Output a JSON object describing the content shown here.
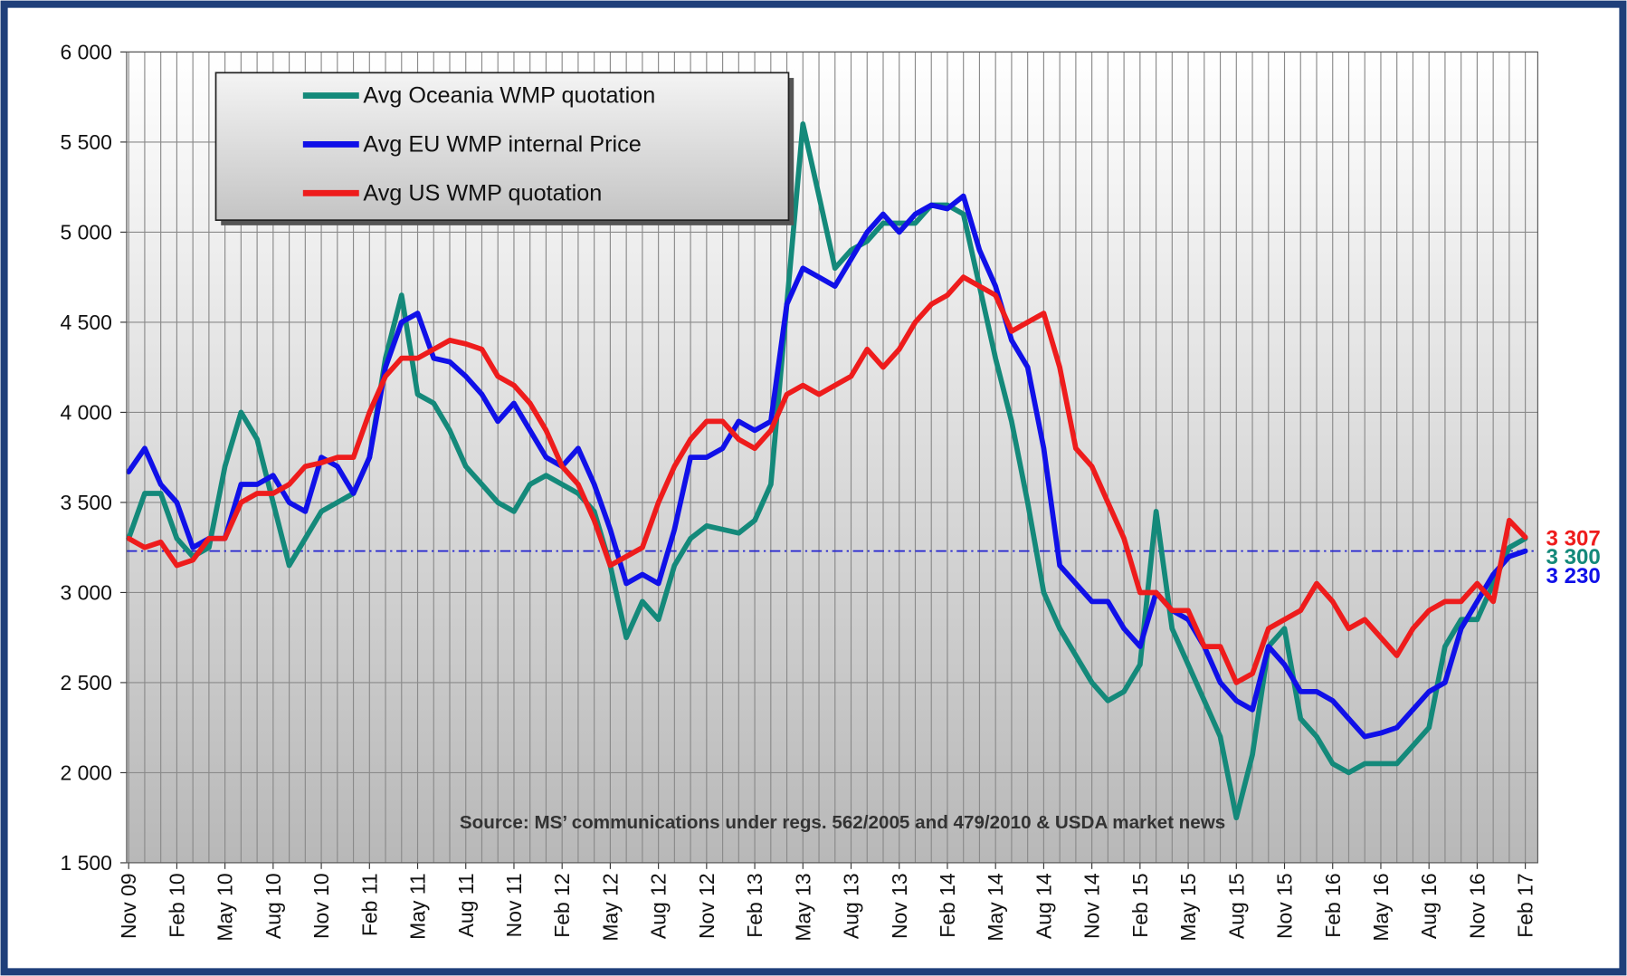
{
  "chart_data": {
    "type": "line",
    "annotation": "Source: MS’ communications  under regs. 562/2005  and 479/2010  & USDA market news",
    "categories": [
      "Nov 09",
      null,
      null,
      "Feb 10",
      null,
      null,
      "May 10",
      null,
      null,
      "Aug 10",
      null,
      null,
      "Nov 10",
      null,
      null,
      "Feb 11",
      null,
      null,
      "May 11",
      null,
      null,
      "Aug 11",
      null,
      null,
      "Nov 11",
      null,
      null,
      "Feb 12",
      null,
      null,
      "May 12",
      null,
      null,
      "Aug 12",
      null,
      null,
      "Nov 12",
      null,
      null,
      "Feb 13",
      null,
      null,
      "May 13",
      null,
      null,
      "Aug 13",
      null,
      null,
      "Nov 13",
      null,
      null,
      "Feb 14",
      null,
      null,
      "May 14",
      null,
      null,
      "Aug 14",
      null,
      null,
      "Nov 14",
      null,
      null,
      "Feb 15",
      null,
      null,
      "May 15",
      null,
      null,
      "Aug 15",
      null,
      null,
      "Nov 15",
      null,
      null,
      "Feb 16",
      null,
      null,
      "May 16",
      null,
      null,
      "Aug 16",
      null,
      null,
      "Nov 16",
      null,
      null,
      "Feb 17"
    ],
    "series": [
      {
        "name": "Avg Oceania WMP quotation",
        "color": "#14897a",
        "end_label": "3 300",
        "values": [
          3300,
          3550,
          3550,
          3300,
          3200,
          3250,
          3700,
          4000,
          3850,
          3500,
          3150,
          3300,
          3450,
          3500,
          3550,
          3750,
          4300,
          4650,
          4100,
          4050,
          3900,
          3700,
          3600,
          3500,
          3450,
          3600,
          3650,
          3600,
          3550,
          3450,
          3150,
          2750,
          2950,
          2850,
          3150,
          3300,
          3370,
          3350,
          3330,
          3400,
          3600,
          4600,
          5600,
          5200,
          4800,
          4900,
          4950,
          5050,
          5050,
          5050,
          5150,
          5150,
          5100,
          4700,
          4300,
          3950,
          3500,
          3000,
          2800,
          2650,
          2500,
          2400,
          2450,
          2600,
          3450,
          2800,
          2600,
          2400,
          2200,
          1750,
          2100,
          2700,
          2800,
          2300,
          2200,
          2050,
          2000,
          2050,
          2050,
          2050,
          2150,
          2250,
          2700,
          2850,
          2850,
          3050,
          3250,
          3300
        ]
      },
      {
        "name": "Avg EU WMP internal Price",
        "color": "#1010e8",
        "end_label": "3 230",
        "values": [
          3670,
          3800,
          3600,
          3500,
          3250,
          3300,
          3300,
          3600,
          3600,
          3650,
          3500,
          3450,
          3750,
          3700,
          3550,
          3750,
          4250,
          4500,
          4550,
          4300,
          4280,
          4200,
          4100,
          3950,
          4050,
          3900,
          3750,
          3700,
          3800,
          3600,
          3350,
          3050,
          3100,
          3050,
          3350,
          3750,
          3750,
          3800,
          3950,
          3900,
          3950,
          4600,
          4800,
          4750,
          4700,
          4850,
          5000,
          5100,
          5000,
          5100,
          5150,
          5130,
          5200,
          4900,
          4700,
          4400,
          4250,
          3800,
          3150,
          3050,
          2950,
          2950,
          2800,
          2700,
          3000,
          2900,
          2850,
          2700,
          2500,
          2400,
          2350,
          2700,
          2600,
          2450,
          2450,
          2400,
          2300,
          2200,
          2220,
          2250,
          2350,
          2450,
          2500,
          2800,
          2950,
          3100,
          3200,
          3230
        ]
      },
      {
        "name": "Avg US WMP quotation",
        "color": "#ee1c1c",
        "end_label": "3 307",
        "values": [
          3300,
          3250,
          3280,
          3150,
          3180,
          3300,
          3300,
          3500,
          3550,
          3550,
          3600,
          3700,
          3720,
          3750,
          3750,
          4000,
          4200,
          4300,
          4300,
          4350,
          4400,
          4380,
          4350,
          4200,
          4150,
          4050,
          3900,
          3700,
          3600,
          3400,
          3150,
          3200,
          3250,
          3500,
          3700,
          3850,
          3950,
          3950,
          3850,
          3800,
          3900,
          4100,
          4150,
          4100,
          4150,
          4200,
          4350,
          4250,
          4350,
          4500,
          4600,
          4650,
          4750,
          4700,
          4650,
          4450,
          4500,
          4550,
          4250,
          3800,
          3700,
          3500,
          3300,
          3000,
          3000,
          2900,
          2900,
          2700,
          2700,
          2500,
          2550,
          2800,
          2850,
          2900,
          3050,
          2950,
          2800,
          2850,
          2750,
          2650,
          2800,
          2900,
          2950,
          2950,
          3050,
          2950,
          3400,
          3307
        ]
      }
    ],
    "reference_line": 3230,
    "ylim": [
      1500,
      6000
    ],
    "yticks": [
      {
        "value": 1500,
        "label": "1 500"
      },
      {
        "value": 2000,
        "label": "2 000"
      },
      {
        "value": 2500,
        "label": "2 500"
      },
      {
        "value": 3000,
        "label": "3 000"
      },
      {
        "value": 3500,
        "label": "3 500"
      },
      {
        "value": 4000,
        "label": "4 000"
      },
      {
        "value": 4500,
        "label": "4 500"
      },
      {
        "value": 5000,
        "label": "5 000"
      },
      {
        "value": 5500,
        "label": "5 500"
      },
      {
        "value": 6000,
        "label": "6 000"
      }
    ],
    "grid": true,
    "legend": "top-left"
  }
}
